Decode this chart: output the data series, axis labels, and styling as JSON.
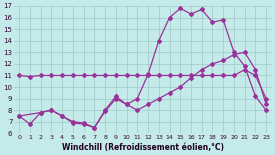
{
  "xlabel": "Windchill (Refroidissement éolien,°C)",
  "bg_color": "#c5eaea",
  "grid_color": "#9dc8c8",
  "line_color": "#993399",
  "xlim": [
    -0.5,
    23.5
  ],
  "ylim": [
    6,
    17
  ],
  "xticks": [
    0,
    1,
    2,
    3,
    4,
    5,
    6,
    7,
    8,
    9,
    10,
    11,
    12,
    13,
    14,
    15,
    16,
    17,
    18,
    19,
    20,
    21,
    22,
    23
  ],
  "yticks": [
    6,
    7,
    8,
    9,
    10,
    11,
    12,
    13,
    14,
    15,
    16,
    17
  ],
  "line1_x": [
    0,
    1,
    2,
    3,
    4,
    5,
    6,
    7,
    8,
    9,
    10,
    11,
    12,
    13,
    14,
    15,
    16,
    17,
    18,
    19,
    20,
    21,
    22,
    23
  ],
  "line1_y": [
    11.0,
    10.9,
    11.0,
    11.0,
    11.0,
    11.0,
    11.0,
    11.0,
    11.0,
    11.0,
    11.0,
    11.0,
    11.0,
    11.0,
    11.0,
    11.0,
    11.0,
    11.0,
    11.0,
    11.0,
    11.0,
    11.5,
    11.0,
    9.0
  ],
  "line2_x": [
    0,
    2,
    3,
    4,
    5,
    6,
    7,
    8,
    9,
    10,
    11,
    12,
    13,
    14,
    15,
    16,
    17,
    18,
    19,
    20,
    21,
    22,
    23
  ],
  "line2_y": [
    7.5,
    7.8,
    8.0,
    7.5,
    7.0,
    6.9,
    6.5,
    8.0,
    9.2,
    8.5,
    8.0,
    8.5,
    9.0,
    9.5,
    10.0,
    10.8,
    11.5,
    12.0,
    12.3,
    12.8,
    13.0,
    11.5,
    8.5
  ],
  "line3_x": [
    0,
    1,
    2,
    3,
    4,
    5,
    6,
    7,
    8,
    9,
    10,
    11,
    12,
    13,
    14,
    15,
    16,
    17,
    18,
    19,
    20,
    21,
    22,
    23
  ],
  "line3_y": [
    7.5,
    6.8,
    7.8,
    8.0,
    7.5,
    6.9,
    6.8,
    6.5,
    7.9,
    9.0,
    8.5,
    9.0,
    11.1,
    14.0,
    16.0,
    16.8,
    16.3,
    16.7,
    15.6,
    15.8,
    13.0,
    11.8,
    9.2,
    8.0
  ]
}
